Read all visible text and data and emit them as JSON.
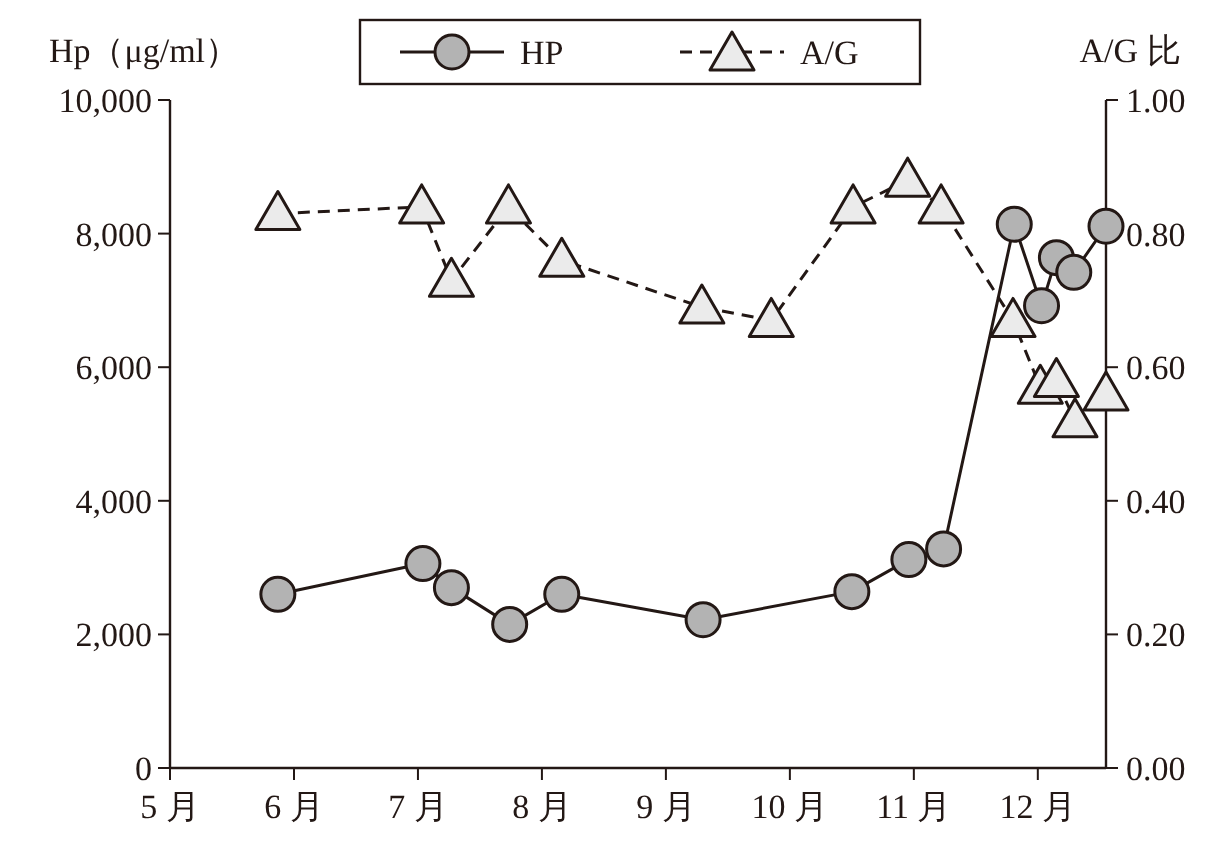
{
  "chart_data": {
    "type": "line",
    "ylabel": "Hp（μg/ml）",
    "y2label": "A/G 比",
    "xlim": [
      5,
      12.55
    ],
    "xticks": [
      {
        "value": 5,
        "label": "5 月"
      },
      {
        "value": 6,
        "label": "6 月"
      },
      {
        "value": 7,
        "label": "7 月"
      },
      {
        "value": 8,
        "label": "8 月"
      },
      {
        "value": 9,
        "label": "9 月"
      },
      {
        "value": 10,
        "label": "10 月"
      },
      {
        "value": 11,
        "label": "11 月"
      },
      {
        "value": 12,
        "label": "12 月"
      }
    ],
    "ylim": [
      0,
      10000
    ],
    "yticks": [
      {
        "value": 0,
        "label": "0"
      },
      {
        "value": 2000,
        "label": "2,000"
      },
      {
        "value": 4000,
        "label": "4,000"
      },
      {
        "value": 6000,
        "label": "6,000"
      },
      {
        "value": 8000,
        "label": "8,000"
      },
      {
        "value": 10000,
        "label": "10,000"
      }
    ],
    "y2lim": [
      0,
      1
    ],
    "y2ticks": [
      {
        "value": 0,
        "label": "0.00"
      },
      {
        "value": 0.2,
        "label": "0.20"
      },
      {
        "value": 0.4,
        "label": "0.40"
      },
      {
        "value": 0.6,
        "label": "0.60"
      },
      {
        "value": 0.8,
        "label": "0.80"
      },
      {
        "value": 1,
        "label": "1.00"
      }
    ],
    "legend": "top",
    "series": [
      {
        "name": "HP",
        "color": "#b3b3b3",
        "marker": "circle",
        "line_style": "solid",
        "x": [
          5.87,
          7.04,
          7.27,
          7.74,
          8.16,
          9.3,
          10.5,
          10.96,
          11.24,
          11.81,
          12.03,
          12.15,
          12.29,
          12.55
        ],
        "values": [
          2600,
          3060,
          2700,
          2150,
          2600,
          2220,
          2640,
          3120,
          3280,
          8140,
          6920,
          7640,
          7420,
          8110
        ]
      },
      {
        "name": "A/G",
        "color": "#ebebeb",
        "marker": "triangle",
        "line_style": "dashed",
        "axis": "y2",
        "x": [
          5.87,
          7.03,
          7.27,
          7.73,
          8.16,
          9.29,
          9.85,
          10.51,
          10.95,
          11.22,
          11.8,
          12.02,
          12.15,
          12.3,
          12.55
        ],
        "values": [
          0.83,
          0.84,
          0.73,
          0.84,
          0.76,
          0.69,
          0.67,
          0.84,
          0.88,
          0.84,
          0.67,
          0.57,
          0.58,
          0.52,
          0.56
        ]
      }
    ]
  }
}
